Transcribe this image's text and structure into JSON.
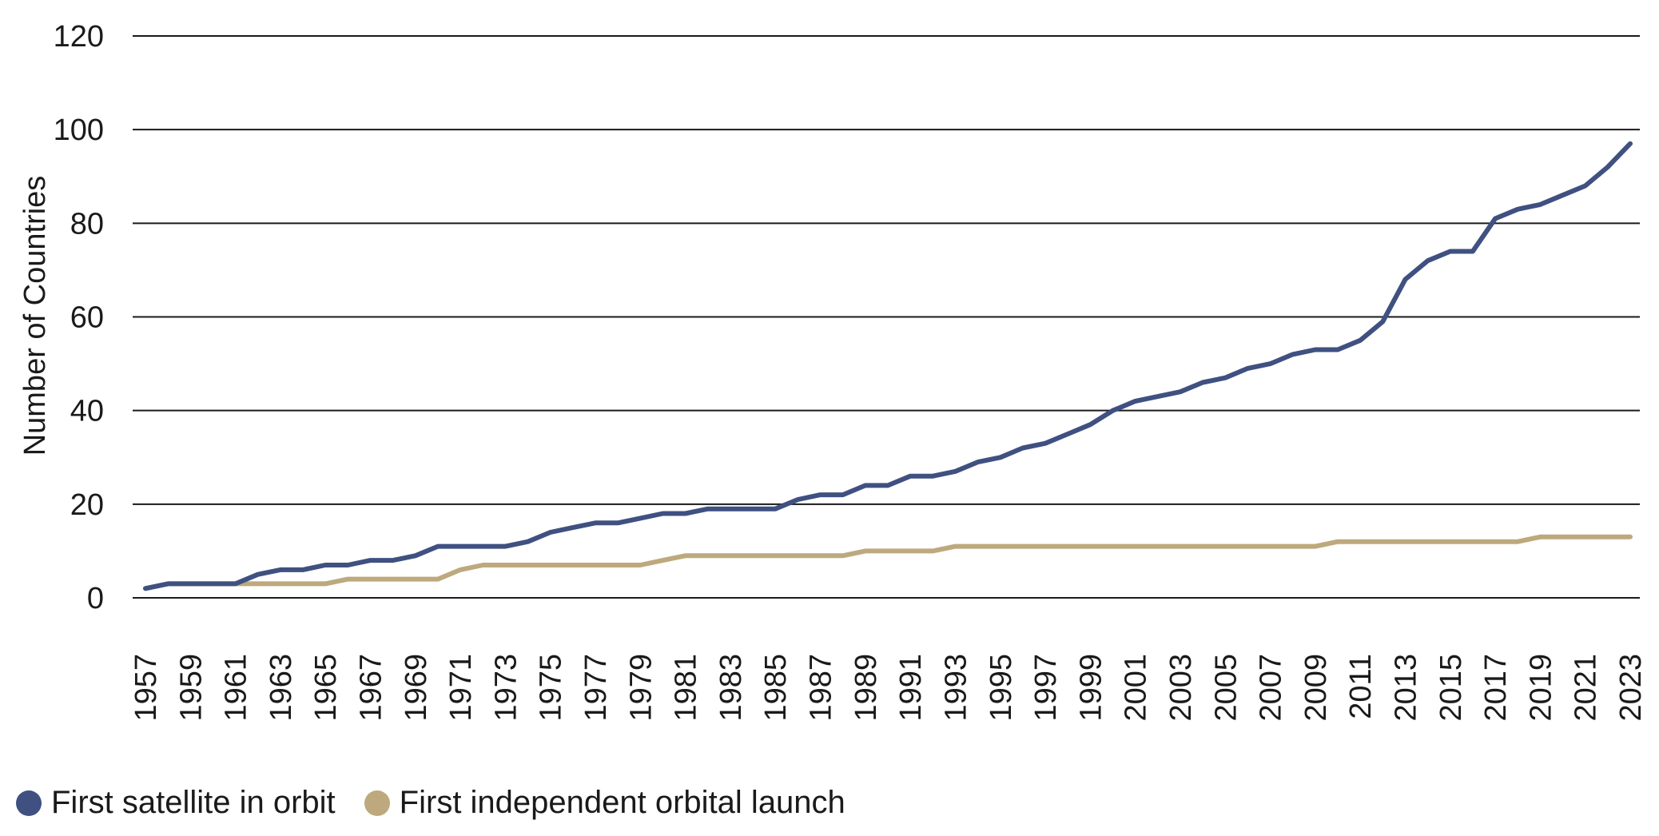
{
  "chart_data": {
    "type": "line",
    "title": "",
    "xlabel": "",
    "ylabel": "Number of Countries",
    "ylim": [
      0,
      120
    ],
    "yticks": [
      0,
      20,
      40,
      60,
      80,
      100,
      120
    ],
    "x": [
      1957,
      1958,
      1959,
      1960,
      1961,
      1962,
      1963,
      1964,
      1965,
      1966,
      1967,
      1968,
      1969,
      1970,
      1971,
      1972,
      1973,
      1974,
      1975,
      1976,
      1977,
      1978,
      1979,
      1980,
      1981,
      1982,
      1983,
      1984,
      1985,
      1986,
      1987,
      1988,
      1989,
      1990,
      1991,
      1992,
      1993,
      1994,
      1995,
      1996,
      1997,
      1998,
      1999,
      2000,
      2001,
      2002,
      2003,
      2004,
      2005,
      2006,
      2007,
      2008,
      2009,
      2010,
      2011,
      2012,
      2013,
      2014,
      2015,
      2016,
      2017,
      2018,
      2019,
      2020,
      2021,
      2022,
      2023
    ],
    "xticks": [
      1957,
      1959,
      1961,
      1963,
      1965,
      1967,
      1969,
      1971,
      1973,
      1975,
      1977,
      1979,
      1981,
      1983,
      1985,
      1987,
      1989,
      1991,
      1993,
      1995,
      1997,
      1999,
      2001,
      2003,
      2005,
      2007,
      2009,
      2011,
      2013,
      2015,
      2017,
      2019,
      2021,
      2023
    ],
    "series": [
      {
        "name": "First satellite in orbit",
        "color": "#3f5081",
        "values": [
          2,
          3,
          3,
          3,
          3,
          5,
          6,
          6,
          7,
          7,
          8,
          8,
          9,
          11,
          11,
          11,
          11,
          12,
          14,
          15,
          16,
          16,
          17,
          18,
          18,
          19,
          19,
          19,
          19,
          21,
          22,
          22,
          24,
          24,
          26,
          26,
          27,
          29,
          30,
          32,
          33,
          35,
          37,
          40,
          42,
          43,
          44,
          46,
          47,
          49,
          50,
          52,
          53,
          53,
          55,
          59,
          68,
          72,
          74,
          74,
          81,
          83,
          84,
          86,
          88,
          92,
          97
        ]
      },
      {
        "name": "First independent orbital launch",
        "color": "#bda97d",
        "values": [
          2,
          3,
          3,
          3,
          3,
          3,
          3,
          3,
          3,
          4,
          4,
          4,
          4,
          4,
          6,
          7,
          7,
          7,
          7,
          7,
          7,
          7,
          7,
          8,
          9,
          9,
          9,
          9,
          9,
          9,
          9,
          9,
          10,
          10,
          10,
          10,
          11,
          11,
          11,
          11,
          11,
          11,
          11,
          11,
          11,
          11,
          11,
          11,
          11,
          11,
          11,
          11,
          11,
          12,
          12,
          12,
          12,
          12,
          12,
          12,
          12,
          12,
          13,
          13,
          13,
          13,
          13
        ]
      }
    ],
    "legend_position": "bottom-left",
    "grid": true
  }
}
